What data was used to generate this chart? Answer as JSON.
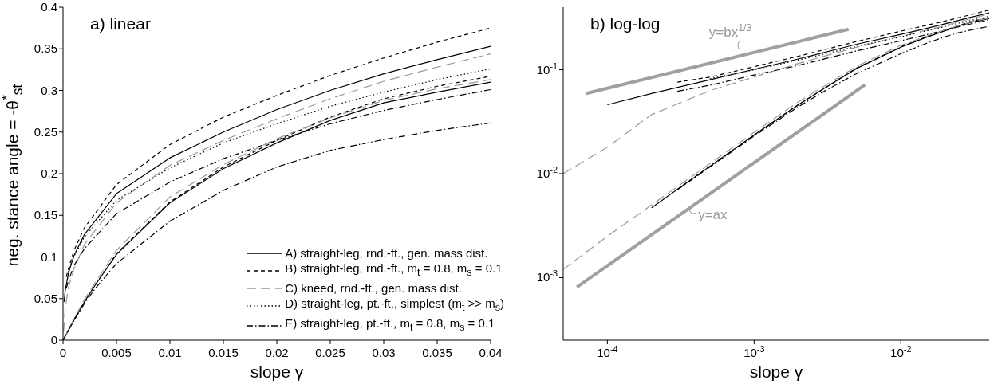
{
  "chart_data": [
    {
      "type": "line",
      "title": "a) linear",
      "xlabel": "slope γ",
      "ylabel": "neg. stance angle = -θ$^{*}$$_{st}$",
      "xlim": [
        0,
        0.04
      ],
      "ylim": [
        0,
        0.4
      ],
      "xticks": [
        0,
        0.005,
        0.01,
        0.015,
        0.02,
        0.025,
        0.03,
        0.035,
        0.04
      ],
      "yticks": [
        0,
        0.05,
        0.1,
        0.15,
        0.2,
        0.25,
        0.3,
        0.35,
        0.4
      ],
      "legend": "bottom right",
      "series": [
        {
          "name": "A) straight-leg, rnd.-ft., gen. mass dist.",
          "color": "#000000",
          "line_style": "solid",
          "x": [
            0.0001,
            0.0002,
            0.0005,
            0.001,
            0.002,
            0.005,
            0.01,
            0.015,
            0.02,
            0.025,
            0.03,
            0.035,
            0.04
          ],
          "values": [
            0.046,
            0.059,
            0.08,
            0.101,
            0.127,
            0.176,
            0.219,
            0.25,
            0.277,
            0.3,
            0.32,
            0.337,
            0.353
          ]
        },
        {
          "name": "B) straight-leg, rnd.-ft., m$_{t}$ = 0.8, m$_{s}$ = 0.1",
          "color": "#000000",
          "line_style": "dashed",
          "x": [
            0.0003,
            0.0005,
            0.001,
            0.002,
            0.005,
            0.01,
            0.015,
            0.02,
            0.025,
            0.03,
            0.035,
            0.04
          ],
          "values": [
            0.076,
            0.085,
            0.107,
            0.135,
            0.187,
            0.235,
            0.268,
            0.294,
            0.318,
            0.339,
            0.358,
            0.375
          ]
        },
        {
          "name": "C) kneed, rnd.-ft., gen. mass dist.",
          "color": "#999999",
          "line_style": "longdash",
          "x": [
            5e-05,
            0.0001,
            0.0002,
            0.0005,
            0.001,
            0.002,
            0.005,
            0.01,
            0.015,
            0.02,
            0.025,
            0.03,
            0.035,
            0.04
          ],
          "values": [
            0.01,
            0.018,
            0.037,
            0.063,
            0.085,
            0.115,
            0.165,
            0.21,
            0.24,
            0.266,
            0.29,
            0.311,
            0.328,
            0.344
          ]
        },
        {
          "name": "D) straight-leg, pt.-ft., simplest (m$_{t}$ >> m$_{s}$)",
          "color": "#000000",
          "line_style": "dotted",
          "x": [
            0.0005,
            0.001,
            0.002,
            0.005,
            0.01,
            0.015,
            0.02,
            0.025,
            0.03,
            0.035,
            0.04
          ],
          "values": [
            0.082,
            0.1,
            0.124,
            0.168,
            0.207,
            0.237,
            0.26,
            0.281,
            0.298,
            0.313,
            0.326
          ]
        },
        {
          "name": "E) straight-leg, pt.-ft., m$_{t}$ = 0.8, m$_{s}$ = 0.1",
          "color": "#000000",
          "line_style": "dashdot",
          "x": [
            0.0003,
            0.0005,
            0.001,
            0.002,
            0.005,
            0.01,
            0.015,
            0.02,
            0.025,
            0.03,
            0.035,
            0.04
          ],
          "values": [
            0.062,
            0.071,
            0.089,
            0.11,
            0.152,
            0.19,
            0.218,
            0.24,
            0.26,
            0.276,
            0.289,
            0.301
          ]
        },
        {
          "color": "#000000",
          "line_style": "solid",
          "x": [
            0,
            0.001,
            0.002,
            0.003,
            0.005,
            0.01,
            0.015,
            0.02,
            0.025,
            0.03,
            0.035,
            0.04
          ],
          "values": [
            0,
            0.024,
            0.046,
            0.066,
            0.103,
            0.165,
            0.206,
            0.237,
            0.264,
            0.285,
            0.298,
            0.31
          ]
        },
        {
          "color": "#000000",
          "line_style": "dashed",
          "x": [
            0,
            0.001,
            0.002,
            0.003,
            0.005,
            0.01,
            0.015,
            0.02,
            0.025,
            0.03,
            0.035,
            0.04
          ],
          "values": [
            0,
            0.024,
            0.046,
            0.066,
            0.104,
            0.166,
            0.208,
            0.24,
            0.268,
            0.29,
            0.305,
            0.317
          ]
        },
        {
          "color": "#999999",
          "line_style": "longdash",
          "x": [
            0,
            0.001,
            0.002,
            0.005,
            0.01,
            0.015,
            0.02,
            0.025,
            0.03,
            0.035,
            0.04
          ],
          "values": [
            0,
            0.025,
            0.049,
            0.108,
            0.172,
            0.211,
            0.242,
            0.267,
            0.288,
            0.302,
            0.313
          ]
        },
        {
          "color": "#000000",
          "line_style": "dashdot",
          "x": [
            0,
            0.001,
            0.002,
            0.003,
            0.005,
            0.01,
            0.015,
            0.02,
            0.025,
            0.03,
            0.035,
            0.04
          ],
          "values": [
            0,
            0.023,
            0.044,
            0.062,
            0.092,
            0.143,
            0.18,
            0.208,
            0.228,
            0.241,
            0.252,
            0.261
          ]
        }
      ]
    },
    {
      "type": "line",
      "title": "b) log-log",
      "xlabel": "slope γ",
      "log": "xy",
      "xlim": [
        5e-05,
        0.04
      ],
      "ylim": [
        0.00025,
        0.4
      ],
      "xticks": [
        {
          "value": 0.0001,
          "label": "10$^{-4}$"
        },
        {
          "value": 0.001,
          "label": "10$^{-3}$"
        },
        {
          "value": 0.01,
          "label": "10$^{-2}$"
        }
      ],
      "yticks": [
        {
          "value": 0.001,
          "label": "10$^{-3}$"
        },
        {
          "value": 0.01,
          "label": "10$^{-2}$"
        },
        {
          "value": 0.1,
          "label": "10$^{-1}$"
        }
      ],
      "annotations": [
        {
          "text": "y=bx$^{1/3}$",
          "x": 0.0008,
          "y": 0.14
        },
        {
          "text": "y=ax",
          "x": 0.00034,
          "y": 0.0044
        }
      ],
      "series": [
        {
          "color": "#000000",
          "line_style": "solid",
          "x": [
            0.0001,
            0.0002,
            0.0005,
            0.001,
            0.002,
            0.005,
            0.01,
            0.015,
            0.02,
            0.025,
            0.03,
            0.035,
            0.04
          ],
          "values": [
            0.046,
            0.059,
            0.08,
            0.101,
            0.127,
            0.176,
            0.219,
            0.25,
            0.277,
            0.3,
            0.32,
            0.337,
            0.353
          ]
        },
        {
          "color": "#000000",
          "line_style": "dashed",
          "x": [
            0.0003,
            0.0005,
            0.001,
            0.002,
            0.005,
            0.01,
            0.015,
            0.02,
            0.025,
            0.03,
            0.035,
            0.04
          ],
          "values": [
            0.076,
            0.085,
            0.107,
            0.135,
            0.187,
            0.235,
            0.268,
            0.294,
            0.318,
            0.339,
            0.358,
            0.375
          ]
        },
        {
          "color": "#999999",
          "line_style": "longdash",
          "x": [
            5e-05,
            0.0001,
            0.0002,
            0.0005,
            0.001,
            0.002,
            0.005,
            0.01,
            0.015,
            0.02,
            0.025,
            0.03,
            0.035,
            0.04
          ],
          "values": [
            0.01,
            0.018,
            0.037,
            0.063,
            0.085,
            0.115,
            0.165,
            0.21,
            0.24,
            0.266,
            0.29,
            0.311,
            0.328,
            0.344
          ]
        },
        {
          "color": "#000000",
          "line_style": "dotted",
          "x": [
            0.0005,
            0.001,
            0.002,
            0.005,
            0.01,
            0.015,
            0.02,
            0.025,
            0.03,
            0.035,
            0.04
          ],
          "values": [
            0.082,
            0.1,
            0.124,
            0.168,
            0.207,
            0.237,
            0.26,
            0.281,
            0.298,
            0.313,
            0.326
          ]
        },
        {
          "color": "#000000",
          "line_style": "dashdot",
          "x": [
            0.0003,
            0.0005,
            0.001,
            0.002,
            0.005,
            0.01,
            0.015,
            0.02,
            0.025,
            0.03,
            0.035,
            0.04
          ],
          "values": [
            0.062,
            0.071,
            0.089,
            0.11,
            0.152,
            0.19,
            0.218,
            0.24,
            0.26,
            0.276,
            0.289,
            0.301
          ]
        },
        {
          "color": "#000000",
          "line_style": "solid",
          "x": [
            0.0002,
            0.0005,
            0.001,
            0.002,
            0.003,
            0.005,
            0.01,
            0.015,
            0.02,
            0.025,
            0.03,
            0.035,
            0.04
          ],
          "values": [
            0.0047,
            0.0118,
            0.0235,
            0.046,
            0.066,
            0.103,
            0.165,
            0.206,
            0.237,
            0.264,
            0.285,
            0.298,
            0.31
          ]
        },
        {
          "color": "#000000",
          "line_style": "dashed",
          "x": [
            0.0003,
            0.0005,
            0.001,
            0.002,
            0.003,
            0.005,
            0.01,
            0.015,
            0.02,
            0.025,
            0.03,
            0.035,
            0.04
          ],
          "values": [
            0.0071,
            0.0118,
            0.0235,
            0.046,
            0.066,
            0.104,
            0.166,
            0.208,
            0.24,
            0.268,
            0.29,
            0.305,
            0.317
          ]
        },
        {
          "color": "#999999",
          "line_style": "longdash",
          "x": [
            5e-05,
            0.0001,
            0.0002,
            0.0005,
            0.001,
            0.002,
            0.005,
            0.01,
            0.015,
            0.02,
            0.025,
            0.03,
            0.035,
            0.04
          ],
          "values": [
            0.0012,
            0.0025,
            0.005,
            0.0125,
            0.025,
            0.049,
            0.108,
            0.172,
            0.211,
            0.242,
            0.267,
            0.288,
            0.302,
            0.313
          ]
        },
        {
          "color": "#000000",
          "line_style": "dashdot",
          "x": [
            0.0003,
            0.0005,
            0.001,
            0.002,
            0.003,
            0.005,
            0.01,
            0.015,
            0.02,
            0.025,
            0.03,
            0.035,
            0.04
          ],
          "values": [
            0.007,
            0.0116,
            0.023,
            0.044,
            0.062,
            0.092,
            0.143,
            0.18,
            0.208,
            0.228,
            0.241,
            0.252,
            0.261
          ]
        },
        {
          "color": "#a0a0a0",
          "x": [
            6.2e-05,
            0.0057
          ],
          "values": [
            0.00081,
            0.0716
          ]
        },
        {
          "color": "#a0a0a0",
          "x": [
            7.1e-05,
            0.0044
          ],
          "values": [
            0.059,
            0.245
          ]
        }
      ]
    }
  ]
}
